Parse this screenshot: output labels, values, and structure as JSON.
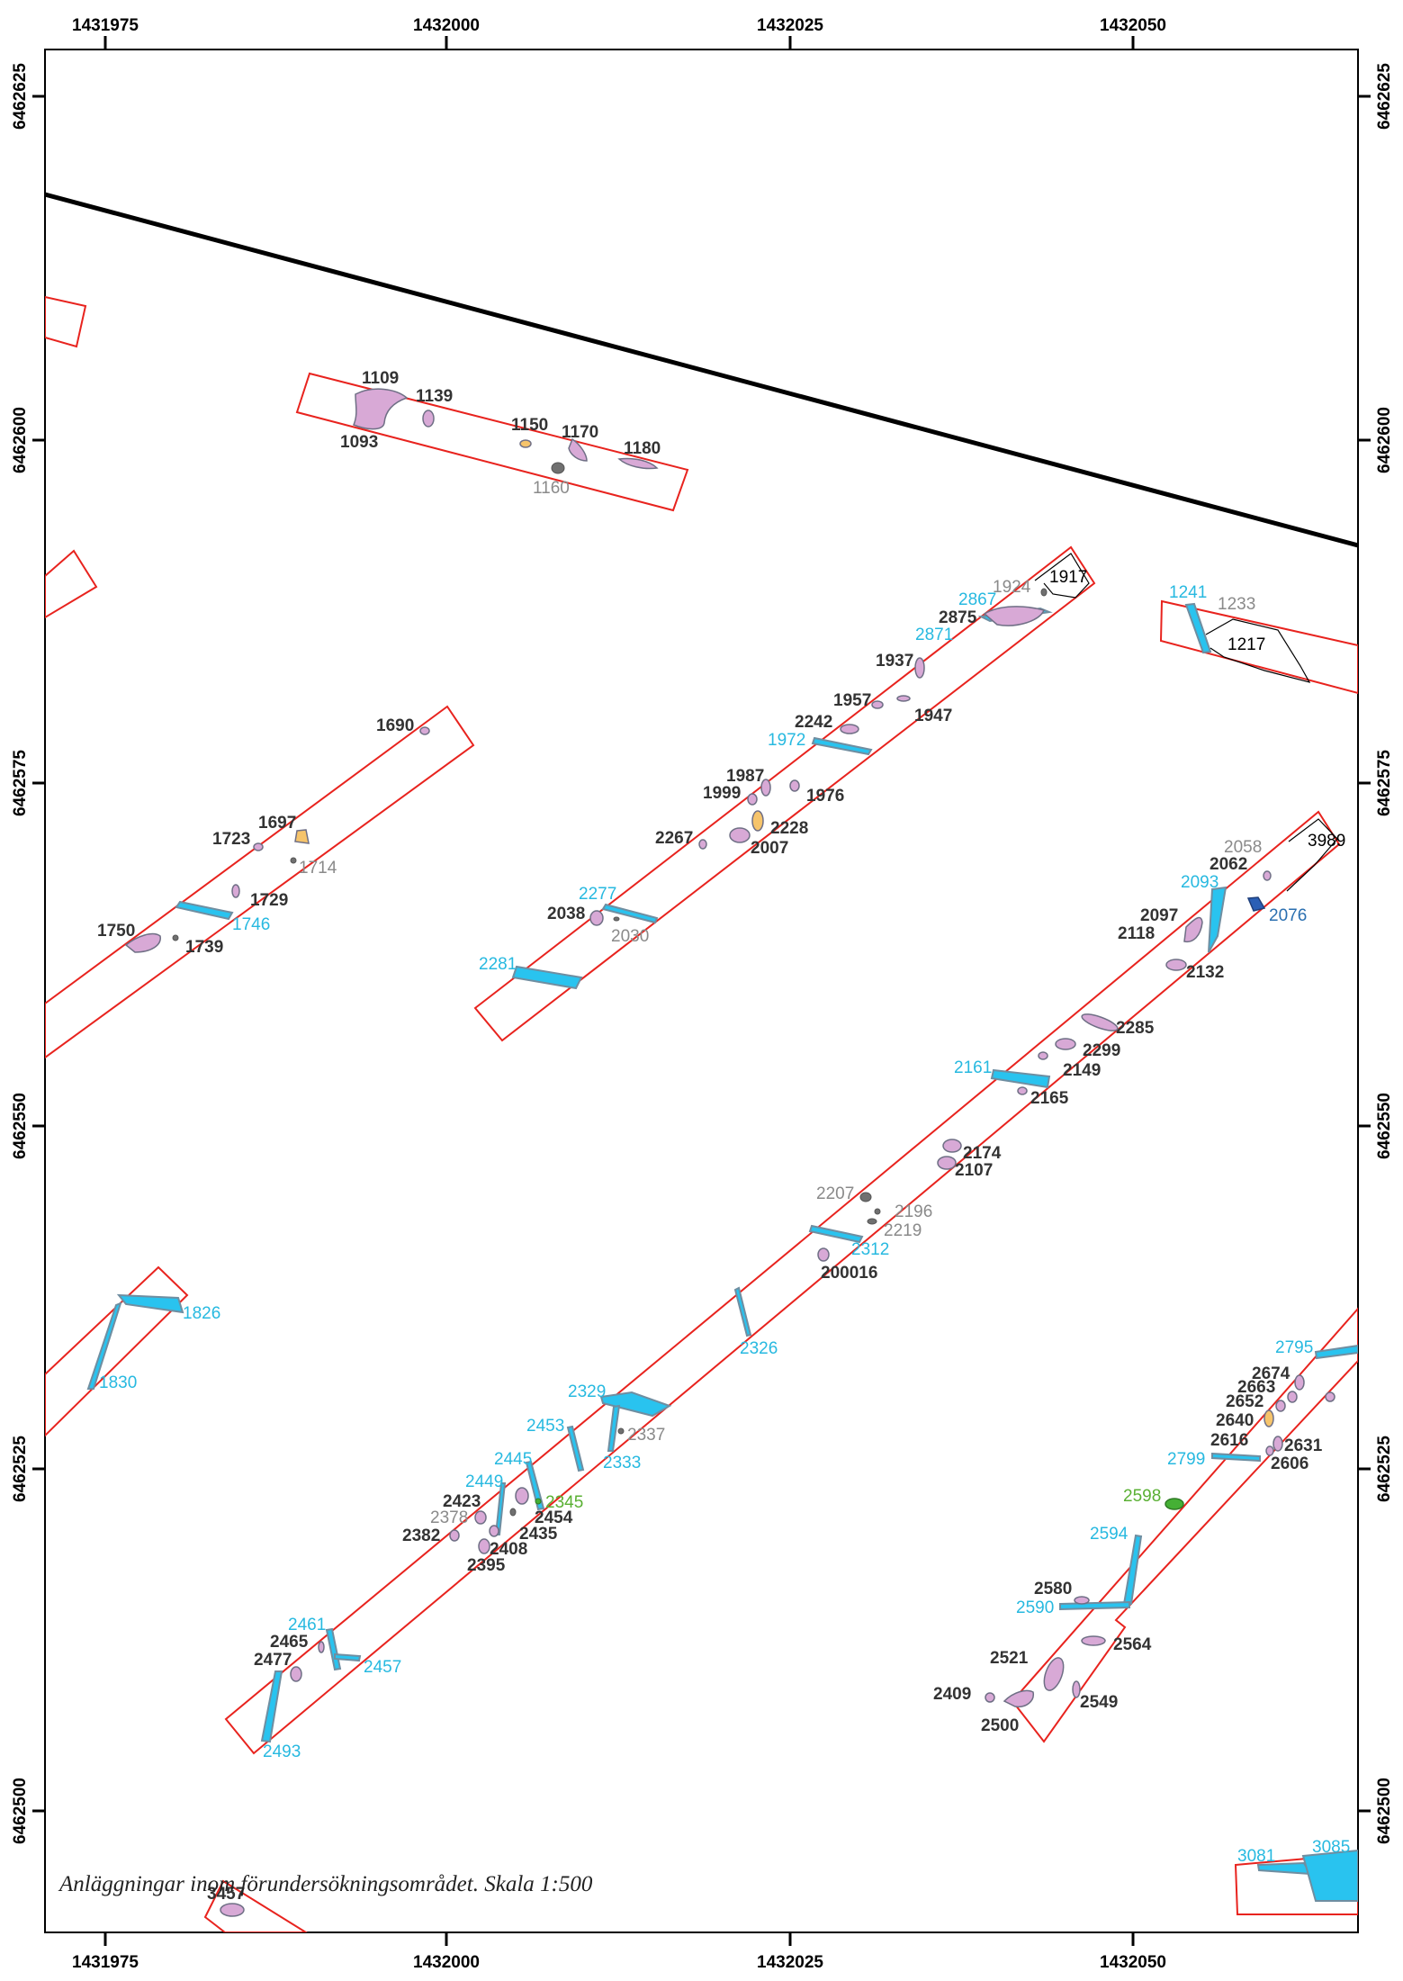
{
  "caption": "Anläggningar inom förundersökningsområdet. Skala 1:500",
  "axis_x_labels": [
    "1431975",
    "1432000",
    "1432025",
    "1432050"
  ],
  "axis_y_labels": [
    "6462625",
    "6462600",
    "6462575",
    "6462550",
    "6462525",
    "6462500"
  ],
  "colors": {
    "frame": "#000000",
    "trench_outline": "#e8231e",
    "pit_fill": "#d8a9d6",
    "ditch_fill": "#29c3ef",
    "stone_fill": "#707070",
    "hearth_fill": "#f6c46b",
    "green_fill": "#45b035",
    "navy_fill": "#2a5fb5"
  },
  "labels": [
    {
      "id": "l1109",
      "text": "1109",
      "cls": "dark"
    },
    {
      "id": "l1139",
      "text": "1139",
      "cls": "dark"
    },
    {
      "id": "l1093",
      "text": "1093",
      "cls": "dark"
    },
    {
      "id": "l1150",
      "text": "1150",
      "cls": "dark"
    },
    {
      "id": "l1170",
      "text": "1170",
      "cls": "dark"
    },
    {
      "id": "l1180",
      "text": "1180",
      "cls": "dark"
    },
    {
      "id": "l1160",
      "text": "1160",
      "cls": "gray"
    },
    {
      "id": "l1924",
      "text": "1924",
      "cls": "gray"
    },
    {
      "id": "l1917",
      "text": "1917",
      "cls": "black"
    },
    {
      "id": "l2867",
      "text": "2867",
      "cls": "blue"
    },
    {
      "id": "l2875",
      "text": "2875",
      "cls": "dark"
    },
    {
      "id": "l2871",
      "text": "2871",
      "cls": "blue"
    },
    {
      "id": "l1241",
      "text": "1241",
      "cls": "blue"
    },
    {
      "id": "l1233",
      "text": "1233",
      "cls": "gray"
    },
    {
      "id": "l1217",
      "text": "1217",
      "cls": "black"
    },
    {
      "id": "l1937",
      "text": "1937",
      "cls": "dark"
    },
    {
      "id": "l1957",
      "text": "1957",
      "cls": "dark"
    },
    {
      "id": "l1947",
      "text": "1947",
      "cls": "dark"
    },
    {
      "id": "l2242",
      "text": "2242",
      "cls": "dark"
    },
    {
      "id": "l1972",
      "text": "1972",
      "cls": "blue"
    },
    {
      "id": "l1690",
      "text": "1690",
      "cls": "dark"
    },
    {
      "id": "l1987",
      "text": "1987",
      "cls": "dark"
    },
    {
      "id": "l1999",
      "text": "1999",
      "cls": "dark"
    },
    {
      "id": "l1976",
      "text": "1976",
      "cls": "dark"
    },
    {
      "id": "l2228",
      "text": "2228",
      "cls": "dark"
    },
    {
      "id": "l2267",
      "text": "2267",
      "cls": "dark"
    },
    {
      "id": "l2007",
      "text": "2007",
      "cls": "dark"
    },
    {
      "id": "l1697",
      "text": "1697",
      "cls": "dark"
    },
    {
      "id": "l1723",
      "text": "1723",
      "cls": "dark"
    },
    {
      "id": "l1714",
      "text": "1714",
      "cls": "gray"
    },
    {
      "id": "l1729",
      "text": "1729",
      "cls": "dark"
    },
    {
      "id": "l1746",
      "text": "1746",
      "cls": "blue"
    },
    {
      "id": "l1750",
      "text": "1750",
      "cls": "dark"
    },
    {
      "id": "l1739",
      "text": "1739",
      "cls": "dark"
    },
    {
      "id": "l2277",
      "text": "2277",
      "cls": "blue"
    },
    {
      "id": "l2038",
      "text": "2038",
      "cls": "dark"
    },
    {
      "id": "l2030",
      "text": "2030",
      "cls": "gray"
    },
    {
      "id": "l2281",
      "text": "2281",
      "cls": "blue"
    },
    {
      "id": "l2058",
      "text": "2058",
      "cls": "gray"
    },
    {
      "id": "l3989",
      "text": "3989",
      "cls": "black"
    },
    {
      "id": "l2062",
      "text": "2062",
      "cls": "dark"
    },
    {
      "id": "l2093",
      "text": "2093",
      "cls": "blue"
    },
    {
      "id": "l2076",
      "text": "2076",
      "cls": "navy"
    },
    {
      "id": "l2097",
      "text": "2097",
      "cls": "dark"
    },
    {
      "id": "l2118",
      "text": "2118",
      "cls": "dark"
    },
    {
      "id": "l2132",
      "text": "2132",
      "cls": "dark"
    },
    {
      "id": "l2285",
      "text": "2285",
      "cls": "dark"
    },
    {
      "id": "l2299",
      "text": "2299",
      "cls": "dark"
    },
    {
      "id": "l2149",
      "text": "2149",
      "cls": "dark"
    },
    {
      "id": "l2161",
      "text": "2161",
      "cls": "blue"
    },
    {
      "id": "l2165",
      "text": "2165",
      "cls": "dark"
    },
    {
      "id": "l2174",
      "text": "2174",
      "cls": "dark"
    },
    {
      "id": "l2107",
      "text": "2107",
      "cls": "dark"
    },
    {
      "id": "l2207",
      "text": "2207",
      "cls": "gray"
    },
    {
      "id": "l2196",
      "text": "2196",
      "cls": "gray"
    },
    {
      "id": "l2219",
      "text": "2219",
      "cls": "gray"
    },
    {
      "id": "l2312",
      "text": "2312",
      "cls": "blue"
    },
    {
      "id": "l200016",
      "text": "200016",
      "cls": "dark"
    },
    {
      "id": "l1826",
      "text": "1826",
      "cls": "blue"
    },
    {
      "id": "l1830",
      "text": "1830",
      "cls": "blue"
    },
    {
      "id": "l2326",
      "text": "2326",
      "cls": "blue"
    },
    {
      "id": "l2795",
      "text": "2795",
      "cls": "blue"
    },
    {
      "id": "l2674",
      "text": "2674",
      "cls": "dark"
    },
    {
      "id": "l2663",
      "text": "2663",
      "cls": "dark"
    },
    {
      "id": "l2652",
      "text": "2652",
      "cls": "dark"
    },
    {
      "id": "l2640",
      "text": "2640",
      "cls": "dark"
    },
    {
      "id": "l2616",
      "text": "2616",
      "cls": "dark"
    },
    {
      "id": "l2631",
      "text": "2631",
      "cls": "dark"
    },
    {
      "id": "l2606",
      "text": "2606",
      "cls": "dark"
    },
    {
      "id": "l2799",
      "text": "2799",
      "cls": "blue"
    },
    {
      "id": "l2329",
      "text": "2329",
      "cls": "blue"
    },
    {
      "id": "l2453",
      "text": "2453",
      "cls": "blue"
    },
    {
      "id": "l2337",
      "text": "2337",
      "cls": "gray"
    },
    {
      "id": "l2333",
      "text": "2333",
      "cls": "blue"
    },
    {
      "id": "l2445",
      "text": "2445",
      "cls": "blue"
    },
    {
      "id": "l2449",
      "text": "2449",
      "cls": "blue"
    },
    {
      "id": "l2423",
      "text": "2423",
      "cls": "dark"
    },
    {
      "id": "l2345",
      "text": "2345",
      "cls": "green"
    },
    {
      "id": "l2378",
      "text": "2378",
      "cls": "gray"
    },
    {
      "id": "l2454",
      "text": "2454",
      "cls": "dark"
    },
    {
      "id": "l2435",
      "text": "2435",
      "cls": "dark"
    },
    {
      "id": "l2382",
      "text": "2382",
      "cls": "dark"
    },
    {
      "id": "l2408",
      "text": "2408",
      "cls": "dark"
    },
    {
      "id": "l2395",
      "text": "2395",
      "cls": "dark"
    },
    {
      "id": "l2598",
      "text": "2598",
      "cls": "green"
    },
    {
      "id": "l2594",
      "text": "2594",
      "cls": "blue"
    },
    {
      "id": "l2580",
      "text": "2580",
      "cls": "dark"
    },
    {
      "id": "l2590",
      "text": "2590",
      "cls": "blue"
    },
    {
      "id": "l2564",
      "text": "2564",
      "cls": "dark"
    },
    {
      "id": "l2521",
      "text": "2521",
      "cls": "dark"
    },
    {
      "id": "l2409",
      "text": "2409",
      "cls": "dark"
    },
    {
      "id": "l2549",
      "text": "2549",
      "cls": "dark"
    },
    {
      "id": "l2500",
      "text": "2500",
      "cls": "dark"
    },
    {
      "id": "l2461",
      "text": "2461",
      "cls": "blue"
    },
    {
      "id": "l2465",
      "text": "2465",
      "cls": "dark"
    },
    {
      "id": "l2477",
      "text": "2477",
      "cls": "dark"
    },
    {
      "id": "l2457",
      "text": "2457",
      "cls": "blue"
    },
    {
      "id": "l2493",
      "text": "2493",
      "cls": "blue"
    },
    {
      "id": "l3081",
      "text": "3081",
      "cls": "blue"
    },
    {
      "id": "l3085",
      "text": "3085",
      "cls": "blue"
    },
    {
      "id": "l3457",
      "text": "3457",
      "cls": "dark"
    }
  ]
}
